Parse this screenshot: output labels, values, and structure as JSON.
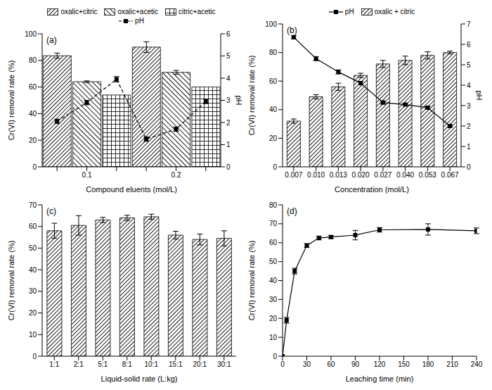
{
  "chart_data": [
    {
      "type": "bar",
      "title": "(a)",
      "x_label": "Compound eluents (mol/L)",
      "y_label": "Cr(VI) removal rate (%)",
      "y2_label": "pH",
      "categories": [
        null,
        "0.1",
        null,
        null,
        "0.2",
        null
      ],
      "series": [
        {
          "name": "oxalic+citric",
          "color": "#000000",
          "values": [
            83.5,
            null,
            null,
            90,
            null,
            null
          ],
          "errors": [
            2,
            null,
            null,
            4,
            null,
            null
          ]
        },
        {
          "name": "oxalic+acetic",
          "color": "#000000",
          "values": [
            null,
            64,
            null,
            null,
            71,
            null
          ],
          "errors": [
            null,
            0.6,
            null,
            null,
            1.5,
            null
          ]
        },
        {
          "name": "citric+acetic",
          "color": "#000000",
          "values": [
            null,
            null,
            54,
            null,
            null,
            60
          ]
        },
        {
          "name": "pH",
          "type": "line",
          "axis": "y2",
          "color": "#000000",
          "line_style": "dashed",
          "marker": "square",
          "values": [
            2.05,
            2.9,
            3.95,
            1.25,
            1.7,
            2.95
          ],
          "errors": [
            0.1,
            0.1,
            0.12,
            0.1,
            0.1,
            0.1
          ]
        }
      ],
      "ylim": [
        0,
        100
      ],
      "yticks": [
        0,
        20,
        40,
        60,
        80,
        100
      ],
      "y2lim": [
        0,
        6
      ],
      "y2ticks": [
        0,
        1,
        2,
        3,
        4,
        5,
        6
      ],
      "legend": "top"
    },
    {
      "type": "bar",
      "title": "(b)",
      "x_label": "Concentration (mol/L)",
      "y_label": "Cr(VI) removal rate (%)",
      "y2_label": "pH",
      "categories": [
        "0.007",
        "0.010",
        "0.013",
        "0.020",
        "0.027",
        "0.040",
        "0.053",
        "0.067"
      ],
      "series": [
        {
          "name": "pH",
          "type": "line",
          "axis": "y2",
          "color": "#000000",
          "line_style": "solid",
          "marker": "square",
          "values": [
            6.35,
            5.3,
            4.65,
            4.1,
            3.15,
            3.05,
            2.9,
            2.0
          ],
          "errors": [
            0.08,
            0.1,
            0.1,
            0.08,
            0.08,
            0.06,
            0.06,
            0.06
          ]
        },
        {
          "name": "oxalic + citric",
          "color": "#000000",
          "values": [
            32,
            49,
            56,
            64,
            72,
            74.5,
            78,
            80
          ],
          "errors": [
            1.5,
            1.5,
            2.5,
            1.5,
            2.5,
            3,
            2.5,
            1
          ]
        }
      ],
      "ylim": [
        0,
        100
      ],
      "yticks": [
        0,
        20,
        40,
        60,
        80,
        100
      ],
      "y2lim": [
        0,
        7
      ],
      "y2ticks": [
        0,
        1,
        2,
        3,
        4,
        5,
        6,
        7
      ],
      "legend": "top"
    },
    {
      "type": "bar",
      "title": "(c)",
      "x_label": "Liquid-solid rate (L:kg)",
      "y_label": "Cr(VI) removal rate (%)",
      "categories": [
        "1:1",
        "2:1",
        "5:1",
        "8:1",
        "10:1",
        "15:1",
        "20:1",
        "30:1"
      ],
      "values": [
        58,
        60.5,
        63,
        64,
        64.5,
        56,
        54,
        54.5
      ],
      "errors": [
        3.5,
        4.5,
        1.2,
        1.2,
        1.2,
        1.8,
        2.5,
        3.5
      ],
      "color": "#000000",
      "ylim": [
        0,
        70
      ],
      "yticks": [
        0,
        10,
        20,
        30,
        40,
        50,
        60,
        70
      ]
    },
    {
      "type": "line",
      "title": "(d)",
      "x_label": "Leaching time (min)",
      "y_label": "Cr(VI) removal rate (%)",
      "x": [
        0,
        5,
        15,
        30,
        45,
        60,
        90,
        120,
        180,
        240
      ],
      "values": [
        0,
        19,
        45,
        58.5,
        62.5,
        63,
        64,
        66.8,
        67,
        66.3
      ],
      "errors": [
        0,
        1.5,
        1.5,
        1,
        1,
        0.8,
        2.5,
        1.2,
        3,
        1.5
      ],
      "color": "#000000",
      "marker": "square",
      "line_style": "solid",
      "xlim": [
        0,
        240
      ],
      "xticks": [
        0,
        30,
        60,
        90,
        120,
        150,
        180,
        210,
        240
      ],
      "ylim": [
        0,
        80
      ],
      "yticks": [
        0,
        10,
        20,
        30,
        40,
        50,
        60,
        70,
        80
      ]
    }
  ]
}
